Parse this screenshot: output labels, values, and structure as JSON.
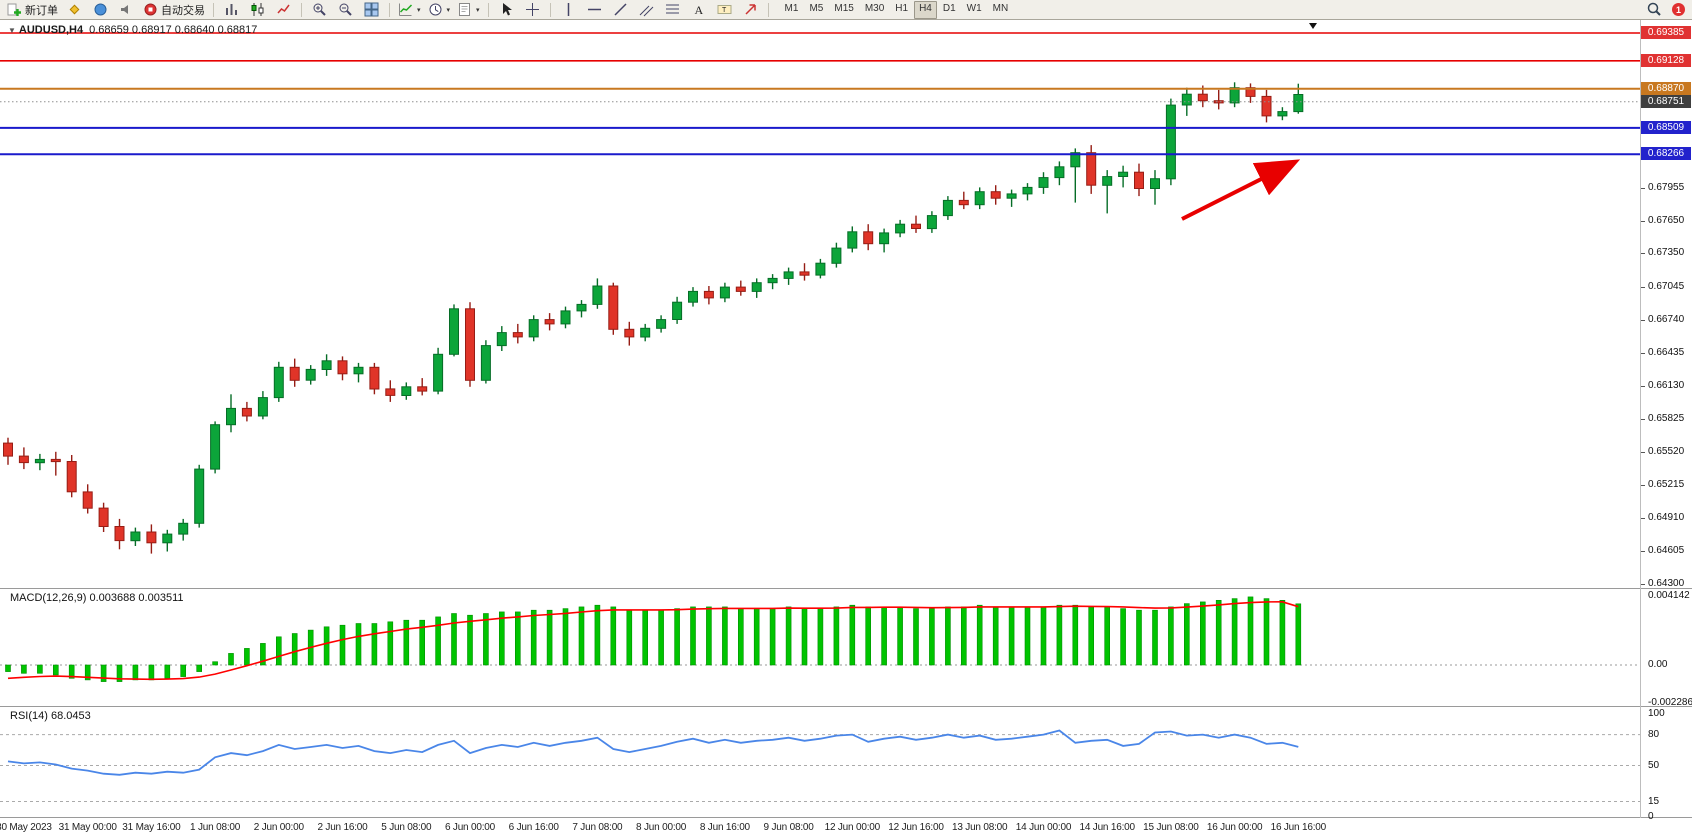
{
  "toolbar": {
    "new_order_label": "新订单",
    "autotrading_label": "自动交易",
    "timeframes": [
      "M1",
      "M5",
      "M15",
      "M30",
      "H1",
      "H4",
      "D1",
      "W1",
      "MN"
    ],
    "active_timeframe": "H4",
    "notification_badge": "1",
    "groups": [
      {
        "kind": "button",
        "name": "new-order-button",
        "icon": "new-order-icon",
        "label_key": "new_order_label"
      },
      {
        "kind": "icons",
        "items": [
          "metaeditor-icon",
          "market-icon",
          "sounds-icon"
        ]
      },
      {
        "kind": "button",
        "name": "autotrading-button",
        "icon": "autotrading-icon",
        "label_key": "autotrading_label"
      },
      {
        "kind": "sep"
      },
      {
        "kind": "icons",
        "items": [
          "bar-chart-icon",
          "candlestick-icon",
          "line-chart-icon"
        ]
      },
      {
        "kind": "sep"
      },
      {
        "kind": "icons",
        "items": [
          "zoom-in-icon",
          "zoom-out-icon",
          "tile-windows-icon"
        ]
      },
      {
        "kind": "sep"
      },
      {
        "kind": "icons",
        "items": [
          "indicators-icon",
          "periods-icon",
          "templates-icon"
        ],
        "dropdown": true
      },
      {
        "kind": "sep"
      },
      {
        "kind": "icons",
        "items": [
          "cursor-icon",
          "crosshair-icon"
        ]
      },
      {
        "kind": "sep"
      },
      {
        "kind": "icons",
        "items": [
          "vertical-line-icon",
          "horizontal-line-icon",
          "trendline-icon",
          "channel-icon",
          "fibonacci-icon",
          "text-icon",
          "text-label-icon",
          "arrow-tools-icon"
        ]
      },
      {
        "kind": "sep"
      },
      {
        "kind": "timeframes"
      }
    ]
  },
  "chart": {
    "symbol_period": "AUDUSD,H4",
    "ohlc_text": "0.68659 0.68917 0.68640 0.68817"
  },
  "macd_panel": {
    "label": "MACD(12,26,9)",
    "values": "0.003688 0.003511",
    "scale_labels": [
      "0.004142",
      "0.00",
      "-0.002286"
    ]
  },
  "rsi_panel": {
    "label": "RSI(14)",
    "value": "68.0453",
    "scale_labels": [
      "100",
      "80",
      "50",
      "15",
      "0"
    ]
  },
  "colors": {
    "candle_up": "#0ca53a",
    "candle_up_border": "#066d27",
    "candle_down": "#e03428",
    "candle_down_border": "#961d15",
    "macd_hist": "#00c400",
    "macd_signal": "#ff0000",
    "rsi_line": "#4a86e8",
    "line_red": "#e60000",
    "line_blue": "#1a1acc",
    "line_orange": "#c87820",
    "bid_box": "#3f3f3f",
    "arrow": "#e80000"
  },
  "chart_data": {
    "type": "candlestick",
    "title": "AUDUSD,H4",
    "last_ohlc": {
      "open": 0.68659,
      "high": 0.68917,
      "low": 0.6864,
      "close": 0.68817
    },
    "price_decimals": 5,
    "y_axis": {
      "ticks": [
        0.67955,
        0.6765,
        0.6735,
        0.67045,
        0.6674,
        0.66435,
        0.6613,
        0.65825,
        0.6552,
        0.65215,
        0.6491,
        0.64605,
        0.643
      ]
    },
    "x_axis": {
      "time_labels": [
        "30 May 2023",
        "31 May 00:00",
        "31 May 16:00",
        "1 Jun 08:00",
        "2 Jun 00:00",
        "2 Jun 16:00",
        "5 Jun 08:00",
        "6 Jun 00:00",
        "6 Jun 16:00",
        "7 Jun 08:00",
        "8 Jun 00:00",
        "8 Jun 16:00",
        "9 Jun 08:00",
        "12 Jun 00:00",
        "12 Jun 16:00",
        "13 Jun 08:00",
        "14 Jun 00:00",
        "14 Jun 16:00",
        "15 Jun 08:00",
        "16 Jun 00:00",
        "16 Jun 16:00"
      ]
    },
    "hlines": [
      {
        "price": 0.69385,
        "label": "0.69385",
        "color": "#e60000",
        "width": 1.6,
        "box": "#e03232",
        "style": "solid"
      },
      {
        "price": 0.69128,
        "label": "0.69128",
        "color": "#e60000",
        "width": 1.6,
        "box": "#e03232",
        "style": "solid"
      },
      {
        "price": 0.6887,
        "label": "0.68870",
        "color": "#c87820",
        "width": 2,
        "box": "#c87820",
        "style": "solid"
      },
      {
        "price": 0.68751,
        "label": "0.68751",
        "color": "#909090",
        "width": 1,
        "box": "#3f3f3f",
        "style": "dotted"
      },
      {
        "price": 0.68509,
        "label": "0.68509",
        "color": "#1a1acc",
        "width": 2,
        "box": "#2222cc",
        "style": "solid"
      },
      {
        "price": 0.68266,
        "label": "0.68266",
        "color": "#1a1acc",
        "width": 2,
        "box": "#2222cc",
        "style": "solid"
      }
    ],
    "candles": [
      [
        0.656,
        0.6565,
        0.654,
        0.6548
      ],
      [
        0.6548,
        0.6556,
        0.6536,
        0.6542
      ],
      [
        0.6542,
        0.655,
        0.6535,
        0.6545
      ],
      [
        0.6545,
        0.6552,
        0.653,
        0.6543
      ],
      [
        0.6543,
        0.6549,
        0.651,
        0.6515
      ],
      [
        0.6515,
        0.6522,
        0.6495,
        0.65
      ],
      [
        0.65,
        0.6505,
        0.6478,
        0.6483
      ],
      [
        0.6483,
        0.649,
        0.6462,
        0.647
      ],
      [
        0.647,
        0.6482,
        0.6465,
        0.6478
      ],
      [
        0.6478,
        0.6485,
        0.6458,
        0.6468
      ],
      [
        0.6468,
        0.648,
        0.646,
        0.6476
      ],
      [
        0.6476,
        0.649,
        0.647,
        0.6486
      ],
      [
        0.6486,
        0.654,
        0.6482,
        0.6536
      ],
      [
        0.6536,
        0.658,
        0.6532,
        0.6577
      ],
      [
        0.6577,
        0.6605,
        0.657,
        0.6592
      ],
      [
        0.6592,
        0.6598,
        0.658,
        0.6585
      ],
      [
        0.6585,
        0.6608,
        0.6582,
        0.6602
      ],
      [
        0.6602,
        0.6635,
        0.6598,
        0.663
      ],
      [
        0.663,
        0.6638,
        0.6612,
        0.6618
      ],
      [
        0.6618,
        0.6632,
        0.6614,
        0.6628
      ],
      [
        0.6628,
        0.6642,
        0.6622,
        0.6636
      ],
      [
        0.6636,
        0.664,
        0.6618,
        0.6624
      ],
      [
        0.6624,
        0.6634,
        0.6616,
        0.663
      ],
      [
        0.663,
        0.6634,
        0.6605,
        0.661
      ],
      [
        0.661,
        0.6618,
        0.6598,
        0.6604
      ],
      [
        0.6604,
        0.6616,
        0.66,
        0.6612
      ],
      [
        0.6612,
        0.662,
        0.6604,
        0.6608
      ],
      [
        0.6608,
        0.6648,
        0.6605,
        0.6642
      ],
      [
        0.6642,
        0.6688,
        0.664,
        0.6684
      ],
      [
        0.6684,
        0.669,
        0.6612,
        0.6618
      ],
      [
        0.6618,
        0.6655,
        0.6615,
        0.665
      ],
      [
        0.665,
        0.6668,
        0.6645,
        0.6662
      ],
      [
        0.6662,
        0.667,
        0.6652,
        0.6658
      ],
      [
        0.6658,
        0.6678,
        0.6654,
        0.6674
      ],
      [
        0.6674,
        0.668,
        0.6664,
        0.667
      ],
      [
        0.667,
        0.6686,
        0.6666,
        0.6682
      ],
      [
        0.6682,
        0.6692,
        0.6676,
        0.6688
      ],
      [
        0.6688,
        0.6712,
        0.6684,
        0.6705
      ],
      [
        0.6705,
        0.6708,
        0.666,
        0.6665
      ],
      [
        0.6665,
        0.6672,
        0.665,
        0.6658
      ],
      [
        0.6658,
        0.667,
        0.6654,
        0.6666
      ],
      [
        0.6666,
        0.6678,
        0.6662,
        0.6674
      ],
      [
        0.6674,
        0.6695,
        0.667,
        0.669
      ],
      [
        0.669,
        0.6704,
        0.6686,
        0.67
      ],
      [
        0.67,
        0.6705,
        0.6688,
        0.6694
      ],
      [
        0.6694,
        0.6708,
        0.669,
        0.6704
      ],
      [
        0.6704,
        0.671,
        0.6696,
        0.67
      ],
      [
        0.67,
        0.6712,
        0.6694,
        0.6708
      ],
      [
        0.6708,
        0.6716,
        0.6702,
        0.6712
      ],
      [
        0.6712,
        0.6722,
        0.6706,
        0.6718
      ],
      [
        0.6718,
        0.6726,
        0.671,
        0.6715
      ],
      [
        0.6715,
        0.673,
        0.6712,
        0.6726
      ],
      [
        0.6726,
        0.6745,
        0.6722,
        0.674
      ],
      [
        0.674,
        0.676,
        0.6736,
        0.6755
      ],
      [
        0.6755,
        0.6762,
        0.6738,
        0.6744
      ],
      [
        0.6744,
        0.6758,
        0.6736,
        0.6754
      ],
      [
        0.6754,
        0.6766,
        0.675,
        0.6762
      ],
      [
        0.6762,
        0.677,
        0.6754,
        0.6758
      ],
      [
        0.6758,
        0.6774,
        0.6754,
        0.677
      ],
      [
        0.677,
        0.6788,
        0.6766,
        0.6784
      ],
      [
        0.6784,
        0.6792,
        0.6776,
        0.678
      ],
      [
        0.678,
        0.6796,
        0.6776,
        0.6792
      ],
      [
        0.6792,
        0.6798,
        0.678,
        0.6786
      ],
      [
        0.6786,
        0.6794,
        0.6778,
        0.679
      ],
      [
        0.679,
        0.68,
        0.6784,
        0.6796
      ],
      [
        0.6796,
        0.681,
        0.679,
        0.6805
      ],
      [
        0.6805,
        0.682,
        0.6798,
        0.6815
      ],
      [
        0.6815,
        0.6832,
        0.6782,
        0.6828
      ],
      [
        0.6828,
        0.6835,
        0.679,
        0.6798
      ],
      [
        0.6798,
        0.6812,
        0.6772,
        0.6806
      ],
      [
        0.6806,
        0.6816,
        0.6796,
        0.681
      ],
      [
        0.681,
        0.6818,
        0.6788,
        0.6795
      ],
      [
        0.6795,
        0.6812,
        0.678,
        0.6804
      ],
      [
        0.6804,
        0.6878,
        0.6798,
        0.6872
      ],
      [
        0.6872,
        0.6888,
        0.6862,
        0.6882
      ],
      [
        0.6882,
        0.689,
        0.687,
        0.6876
      ],
      [
        0.6876,
        0.6886,
        0.6868,
        0.6874
      ],
      [
        0.6874,
        0.6893,
        0.687,
        0.6888
      ],
      [
        0.6888,
        0.6892,
        0.6874,
        0.688
      ],
      [
        0.688,
        0.6886,
        0.6856,
        0.6862
      ],
      [
        0.6862,
        0.687,
        0.6858,
        0.6866
      ],
      [
        0.68659,
        0.68917,
        0.6864,
        0.68817
      ]
    ],
    "indicators": {
      "macd": {
        "name": "MACD(12,26,9)",
        "main_value": 0.003688,
        "signal_value": 0.003511,
        "scale": {
          "max": 0.004142,
          "zero": 0,
          "min": -0.002286
        },
        "histogram": [
          -0.0004,
          -0.0005,
          -0.0005,
          -0.0006,
          -0.0008,
          -0.0009,
          -0.001,
          -0.001,
          -0.0009,
          -0.0009,
          -0.0008,
          -0.0007,
          -0.0004,
          0.0002,
          0.0007,
          0.001,
          0.0013,
          0.0017,
          0.0019,
          0.0021,
          0.0023,
          0.0024,
          0.0025,
          0.0025,
          0.0026,
          0.0027,
          0.0027,
          0.0029,
          0.0031,
          0.003,
          0.0031,
          0.0032,
          0.0032,
          0.0033,
          0.0033,
          0.0034,
          0.0035,
          0.0036,
          0.0035,
          0.0033,
          0.0033,
          0.0033,
          0.0034,
          0.0035,
          0.0035,
          0.0035,
          0.0034,
          0.0034,
          0.0034,
          0.0035,
          0.0034,
          0.0034,
          0.0035,
          0.0036,
          0.0035,
          0.0035,
          0.0035,
          0.0034,
          0.0034,
          0.0035,
          0.0035,
          0.0036,
          0.0035,
          0.0035,
          0.0035,
          0.0035,
          0.0036,
          0.0036,
          0.0035,
          0.0035,
          0.0034,
          0.0033,
          0.0033,
          0.0035,
          0.0037,
          0.0038,
          0.0039,
          0.004,
          0.0041,
          0.004,
          0.0039,
          0.003688
        ],
        "signal": [
          -0.0008,
          -0.00074,
          -0.00069,
          -0.00067,
          -0.0007,
          -0.00074,
          -0.00079,
          -0.00083,
          -0.00085,
          -0.00086,
          -0.00085,
          -0.00082,
          -0.00073,
          -0.00055,
          -0.0003,
          -4e-05,
          0.00023,
          0.00052,
          0.0008,
          0.00106,
          0.00131,
          0.00153,
          0.00172,
          0.00188,
          0.00202,
          0.00216,
          0.00227,
          0.00239,
          0.00253,
          0.00263,
          0.00272,
          0.00282,
          0.0029,
          0.00298,
          0.00304,
          0.00311,
          0.00319,
          0.00327,
          0.00332,
          0.00332,
          0.00332,
          0.00332,
          0.00333,
          0.00337,
          0.00339,
          0.00341,
          0.00341,
          0.00341,
          0.00341,
          0.00343,
          0.00342,
          0.00342,
          0.00343,
          0.00347,
          0.00347,
          0.00348,
          0.00348,
          0.00347,
          0.00345,
          0.00346,
          0.00347,
          0.0035,
          0.0035,
          0.0035,
          0.0035,
          0.0035,
          0.00352,
          0.00354,
          0.00353,
          0.00352,
          0.0035,
          0.00346,
          0.00343,
          0.00344,
          0.00349,
          0.00355,
          0.00362,
          0.0037,
          0.00376,
          0.0038,
          0.00381,
          0.003511
        ]
      },
      "rsi": {
        "name": "RSI(14)",
        "value": 68.0453,
        "range": [
          0,
          100
        ],
        "levels": [
          80,
          50,
          15
        ],
        "values": [
          54,
          52,
          53,
          51,
          47,
          45,
          42,
          41,
          43,
          42,
          44,
          43,
          46,
          58,
          62,
          60,
          64,
          70,
          66,
          68,
          70,
          67,
          69,
          64,
          62,
          65,
          63,
          70,
          74,
          62,
          67,
          70,
          68,
          72,
          69,
          72,
          74,
          77,
          66,
          63,
          66,
          69,
          73,
          76,
          72,
          75,
          72,
          74,
          75,
          77,
          74,
          76,
          79,
          80,
          73,
          76,
          78,
          75,
          77,
          80,
          77,
          79,
          75,
          76,
          78,
          80,
          84,
          72,
          74,
          75,
          69,
          71,
          82,
          83,
          79,
          80,
          77,
          80,
          77,
          71,
          72,
          68.05
        ]
      }
    },
    "annotation": {
      "type": "arrow",
      "color": "#e80000",
      "direction": "up-right"
    }
  }
}
